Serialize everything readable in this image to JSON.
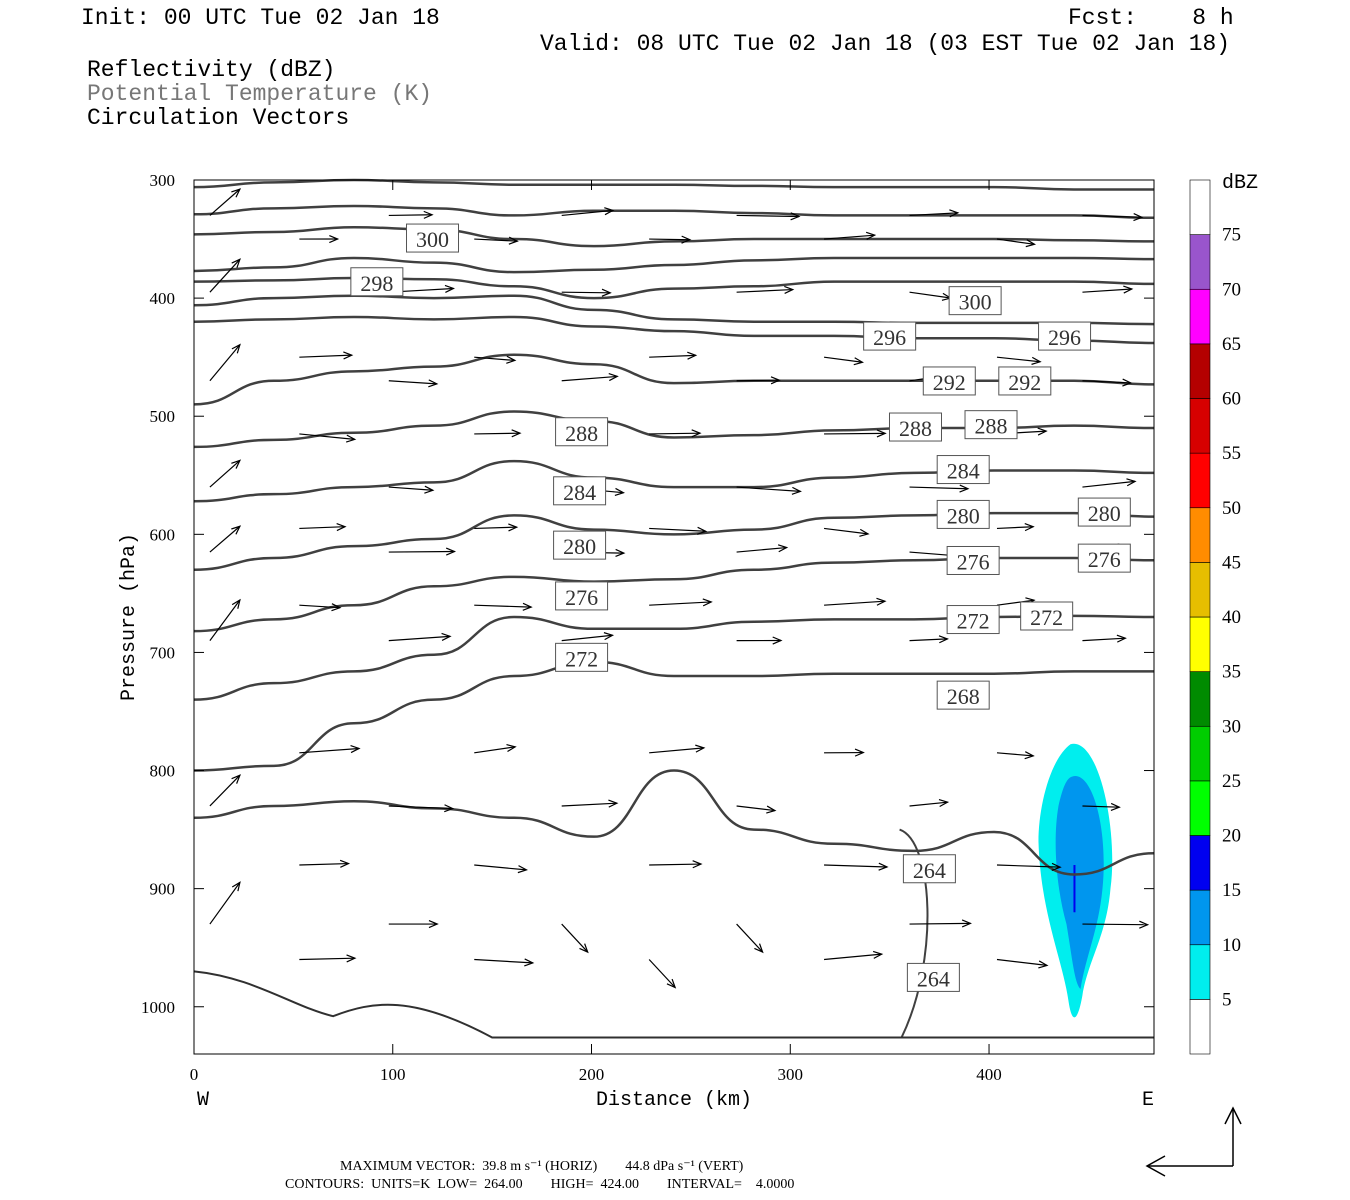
{
  "header": {
    "init": "Init: 00 UTC Tue 02 Jan 18",
    "fcst": "Fcst:    8 h",
    "valid": "Valid: 08 UTC Tue 02 Jan 18 (03 EST Tue 02 Jan 18)",
    "field1": "Reflectivity (dBZ)",
    "field2": "Potential Temperature (K)",
    "field3": "Circulation Vectors"
  },
  "footer": {
    "line1": "MAXIMUM VECTOR:  39.8 m s⁻¹ (HORIZ)        44.8 dPa s⁻¹ (VERT)",
    "line2": "CONTOURS:  UNITS=K  LOW=  264.00        HIGH=  424.00        INTERVAL=    4.0000"
  },
  "chart_data": {
    "type": "contour",
    "xlabel": "Distance (km)",
    "ylabel": "Pressure (hPa)",
    "x_left_label": "W",
    "x_right_label": "E",
    "xlim": [
      0,
      483
    ],
    "ylim": [
      1040,
      300
    ],
    "xticks": [
      0,
      100,
      200,
      300,
      400
    ],
    "yticks": [
      300,
      400,
      500,
      600,
      700,
      800,
      900,
      1000
    ],
    "colorbar": {
      "label": "dBZ",
      "levels": [
        5,
        10,
        15,
        20,
        25,
        30,
        35,
        40,
        45,
        50,
        55,
        60,
        65,
        70,
        75
      ],
      "colors": [
        "#ffffff",
        "#00eeee",
        "#0096ee",
        "#0000f0",
        "#00ff00",
        "#00cd00",
        "#008b00",
        "#ffff00",
        "#e6be00",
        "#ff8c00",
        "#ff0000",
        "#d70000",
        "#b40000",
        "#ff00ff",
        "#9955cc",
        "#ffffff"
      ]
    },
    "contour_labels": [
      {
        "text": "300",
        "x": 120,
        "p": 350
      },
      {
        "text": "298",
        "x": 92,
        "p": 387
      },
      {
        "text": "300",
        "x": 393,
        "p": 403
      },
      {
        "text": "296",
        "x": 350,
        "p": 433
      },
      {
        "text": "296",
        "x": 438,
        "p": 433
      },
      {
        "text": "292",
        "x": 380,
        "p": 471
      },
      {
        "text": "292",
        "x": 418,
        "p": 471
      },
      {
        "text": "288",
        "x": 195,
        "p": 514
      },
      {
        "text": "288",
        "x": 363,
        "p": 510
      },
      {
        "text": "288",
        "x": 401,
        "p": 508
      },
      {
        "text": "284",
        "x": 194,
        "p": 564
      },
      {
        "text": "284",
        "x": 387,
        "p": 546
      },
      {
        "text": "280",
        "x": 194,
        "p": 610
      },
      {
        "text": "280",
        "x": 387,
        "p": 584
      },
      {
        "text": "280",
        "x": 458,
        "p": 582
      },
      {
        "text": "276",
        "x": 195,
        "p": 653
      },
      {
        "text": "276",
        "x": 392,
        "p": 623
      },
      {
        "text": "276",
        "x": 458,
        "p": 621
      },
      {
        "text": "272",
        "x": 195,
        "p": 705
      },
      {
        "text": "272",
        "x": 392,
        "p": 673
      },
      {
        "text": "272",
        "x": 429,
        "p": 670
      },
      {
        "text": "268",
        "x": 387,
        "p": 737
      },
      {
        "text": "264",
        "x": 370,
        "p": 884
      },
      {
        "text": "264",
        "x": 372,
        "p": 976
      }
    ],
    "theta_contours": [
      {
        "p": [
          306,
          302,
          300,
          302,
          304,
          304,
          304,
          305,
          306,
          306,
          306,
          308,
          308
        ]
      },
      {
        "p": [
          329,
          324,
          322,
          324,
          330,
          326,
          326,
          328,
          330,
          330,
          330,
          330,
          332
        ]
      },
      {
        "p": [
          346,
          344,
          340,
          342,
          350,
          356,
          352,
          350,
          350,
          350,
          350,
          351,
          352
        ]
      },
      {
        "p": [
          377,
          374,
          366,
          370,
          378,
          376,
          372,
          368,
          366,
          366,
          366,
          366,
          367
        ]
      },
      {
        "p": [
          386,
          385,
          383,
          384,
          390,
          400,
          392,
          390,
          386,
          386,
          386,
          386,
          388
        ]
      },
      {
        "p": [
          406,
          400,
          398,
          400,
          398,
          410,
          418,
          420,
          420,
          421,
          421,
          421,
          422
        ]
      },
      {
        "p": [
          420,
          418,
          416,
          418,
          416,
          424,
          428,
          432,
          432,
          434,
          434,
          436,
          438
        ]
      },
      {
        "p": [
          490,
          470,
          462,
          458,
          448,
          456,
          472,
          470,
          470,
          470,
          470,
          470,
          473
        ]
      },
      {
        "p": [
          526,
          520,
          514,
          508,
          496,
          504,
          518,
          516,
          512,
          510,
          510,
          508,
          510
        ]
      },
      {
        "p": [
          572,
          566,
          560,
          556,
          538,
          552,
          560,
          560,
          552,
          548,
          546,
          546,
          548
        ]
      },
      {
        "p": [
          630,
          620,
          610,
          604,
          584,
          596,
          600,
          596,
          586,
          584,
          582,
          582,
          585
        ]
      },
      {
        "p": [
          682,
          672,
          660,
          644,
          636,
          640,
          638,
          630,
          624,
          622,
          620,
          620,
          622
        ]
      },
      {
        "p": [
          740,
          726,
          716,
          702,
          670,
          680,
          680,
          674,
          672,
          672,
          670,
          669,
          670
        ]
      },
      {
        "p": [
          800,
          796,
          760,
          740,
          720,
          708,
          720,
          720,
          718,
          718,
          718,
          716,
          716
        ]
      },
      {
        "p": [
          840,
          830,
          826,
          832,
          840,
          856,
          800,
          850,
          862,
          868,
          852,
          888,
          870
        ]
      }
    ],
    "reflectivity_echo": {
      "x_center": 445,
      "p_top": 776,
      "p_bottom": 1018,
      "max_dbz": 15
    }
  }
}
